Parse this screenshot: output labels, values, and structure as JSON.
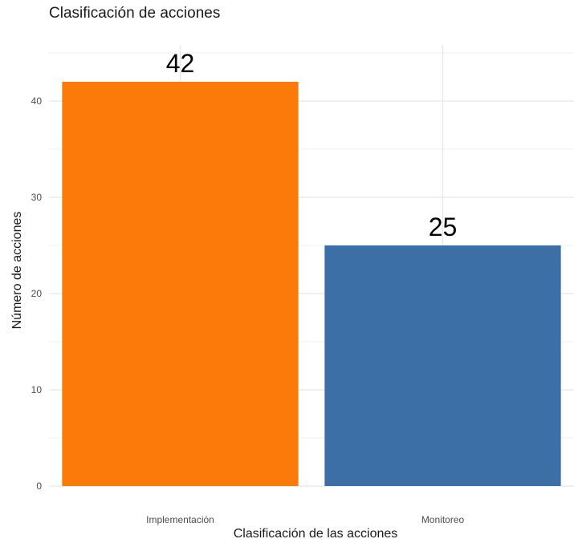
{
  "chart_data": {
    "type": "bar",
    "title": "Clasificación de acciones",
    "xlabel": "Clasificación de las acciones",
    "ylabel": "Número de acciones",
    "categories": [
      "Implementación",
      "Monitoreo"
    ],
    "values": [
      42,
      25
    ],
    "data_labels": [
      "42",
      "25"
    ],
    "colors": [
      "#FB7A09",
      "#3B6FA6"
    ],
    "ylim": [
      0,
      45
    ],
    "yticks": [
      0,
      10,
      20,
      30,
      40
    ],
    "ytick_labels": [
      "0",
      "10",
      "20",
      "30",
      "40"
    ],
    "grid": true,
    "legend": "none"
  }
}
